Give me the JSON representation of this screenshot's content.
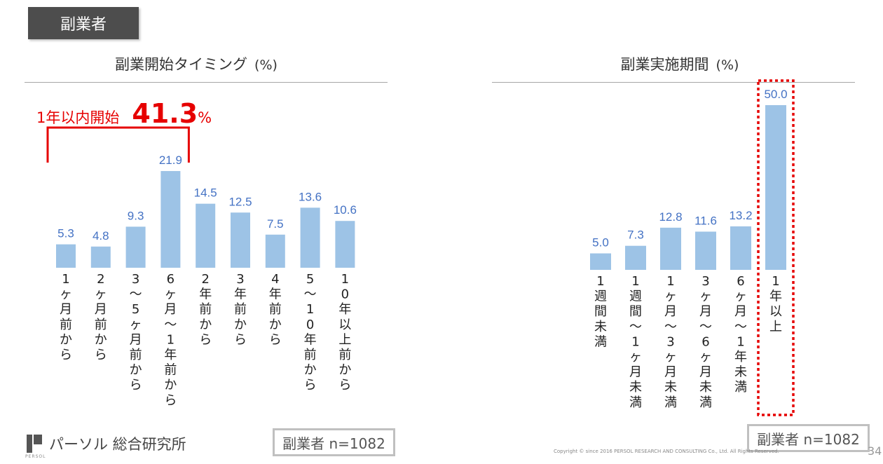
{
  "tag_label": "副業者",
  "accent_color": "#e60000",
  "bar_color": "#9dc3e6",
  "label_color": "#4472c4",
  "chart_data": [
    {
      "type": "bar",
      "title": "副業開始タイミング",
      "unit": "(%)",
      "categories": [
        "1ヶ月前から",
        "2ヶ月前から",
        "3〜5ヶ月前から",
        "6ヶ月〜1年前から",
        "2年前から",
        "3年前から",
        "4年前から",
        "5〜10年前から",
        "10年以上前から"
      ],
      "category_lines": [
        [
          "1",
          "ヶ",
          "月",
          "前",
          "か",
          "ら"
        ],
        [
          "2",
          "ヶ",
          "月",
          "前",
          "か",
          "ら"
        ],
        [
          "3",
          "〜",
          "5",
          "ヶ",
          "月",
          "前",
          "か",
          "ら"
        ],
        [
          "6",
          "ヶ",
          "月",
          "〜",
          "1",
          "年",
          "前",
          "か",
          "ら"
        ],
        [
          "2",
          "年",
          "前",
          "か",
          "ら"
        ],
        [
          "3",
          "年",
          "前",
          "か",
          "ら"
        ],
        [
          "4",
          "年",
          "前",
          "か",
          "ら"
        ],
        [
          "5",
          "〜",
          "1",
          "0",
          "年",
          "前",
          "か",
          "ら"
        ],
        [
          "1",
          "0",
          "年",
          "以",
          "上",
          "前",
          "か",
          "ら"
        ]
      ],
      "values": [
        5.3,
        4.8,
        9.3,
        21.9,
        14.5,
        12.5,
        7.5,
        13.6,
        10.6
      ],
      "value_labels": [
        "5.3",
        "4.8",
        "9.3",
        "21.9",
        "14.5",
        "12.5",
        "7.5",
        "13.6",
        "10.6"
      ],
      "callout": {
        "text": "1年以内開始",
        "value": "41.3",
        "suffix": "%"
      },
      "sample_note": "副業者 n=1082"
    },
    {
      "type": "bar",
      "title": "副業実施期間",
      "unit": "(%)",
      "categories": [
        "1週間未満",
        "1週間〜1ヶ月未満",
        "1ヶ月〜3ヶ月未満",
        "3ヶ月〜6ヶ月未満",
        "6ヶ月〜1年未満",
        "1年以上"
      ],
      "category_lines": [
        [
          "1",
          "週",
          "間",
          "未",
          "満"
        ],
        [
          "1",
          "週",
          "間",
          "〜",
          "1",
          "ヶ",
          "月",
          "未",
          "満"
        ],
        [
          "1",
          "ヶ",
          "月",
          "〜",
          "3",
          "ヶ",
          "月",
          "未",
          "満"
        ],
        [
          "3",
          "ヶ",
          "月",
          "〜",
          "6",
          "ヶ",
          "月",
          "未",
          "満"
        ],
        [
          "6",
          "ヶ",
          "月",
          "〜",
          "1",
          "年",
          "未",
          "満"
        ],
        [
          "1",
          "年",
          "以",
          "上"
        ]
      ],
      "values": [
        5.0,
        7.3,
        12.8,
        11.6,
        13.2,
        50.0
      ],
      "value_labels": [
        "5.0",
        "7.3",
        "12.8",
        "11.6",
        "13.2",
        "50.0"
      ],
      "highlight_index": 5,
      "sample_note": "副業者 n=1082"
    }
  ],
  "logo_text": "パーソル 総合研究所",
  "logo_small": "PERSOL",
  "copyright": "Copyright © since 2016 PERSOL RESEARCH AND CONSULTING Co., Ltd. All Rights Reserved.",
  "page_number": "34"
}
